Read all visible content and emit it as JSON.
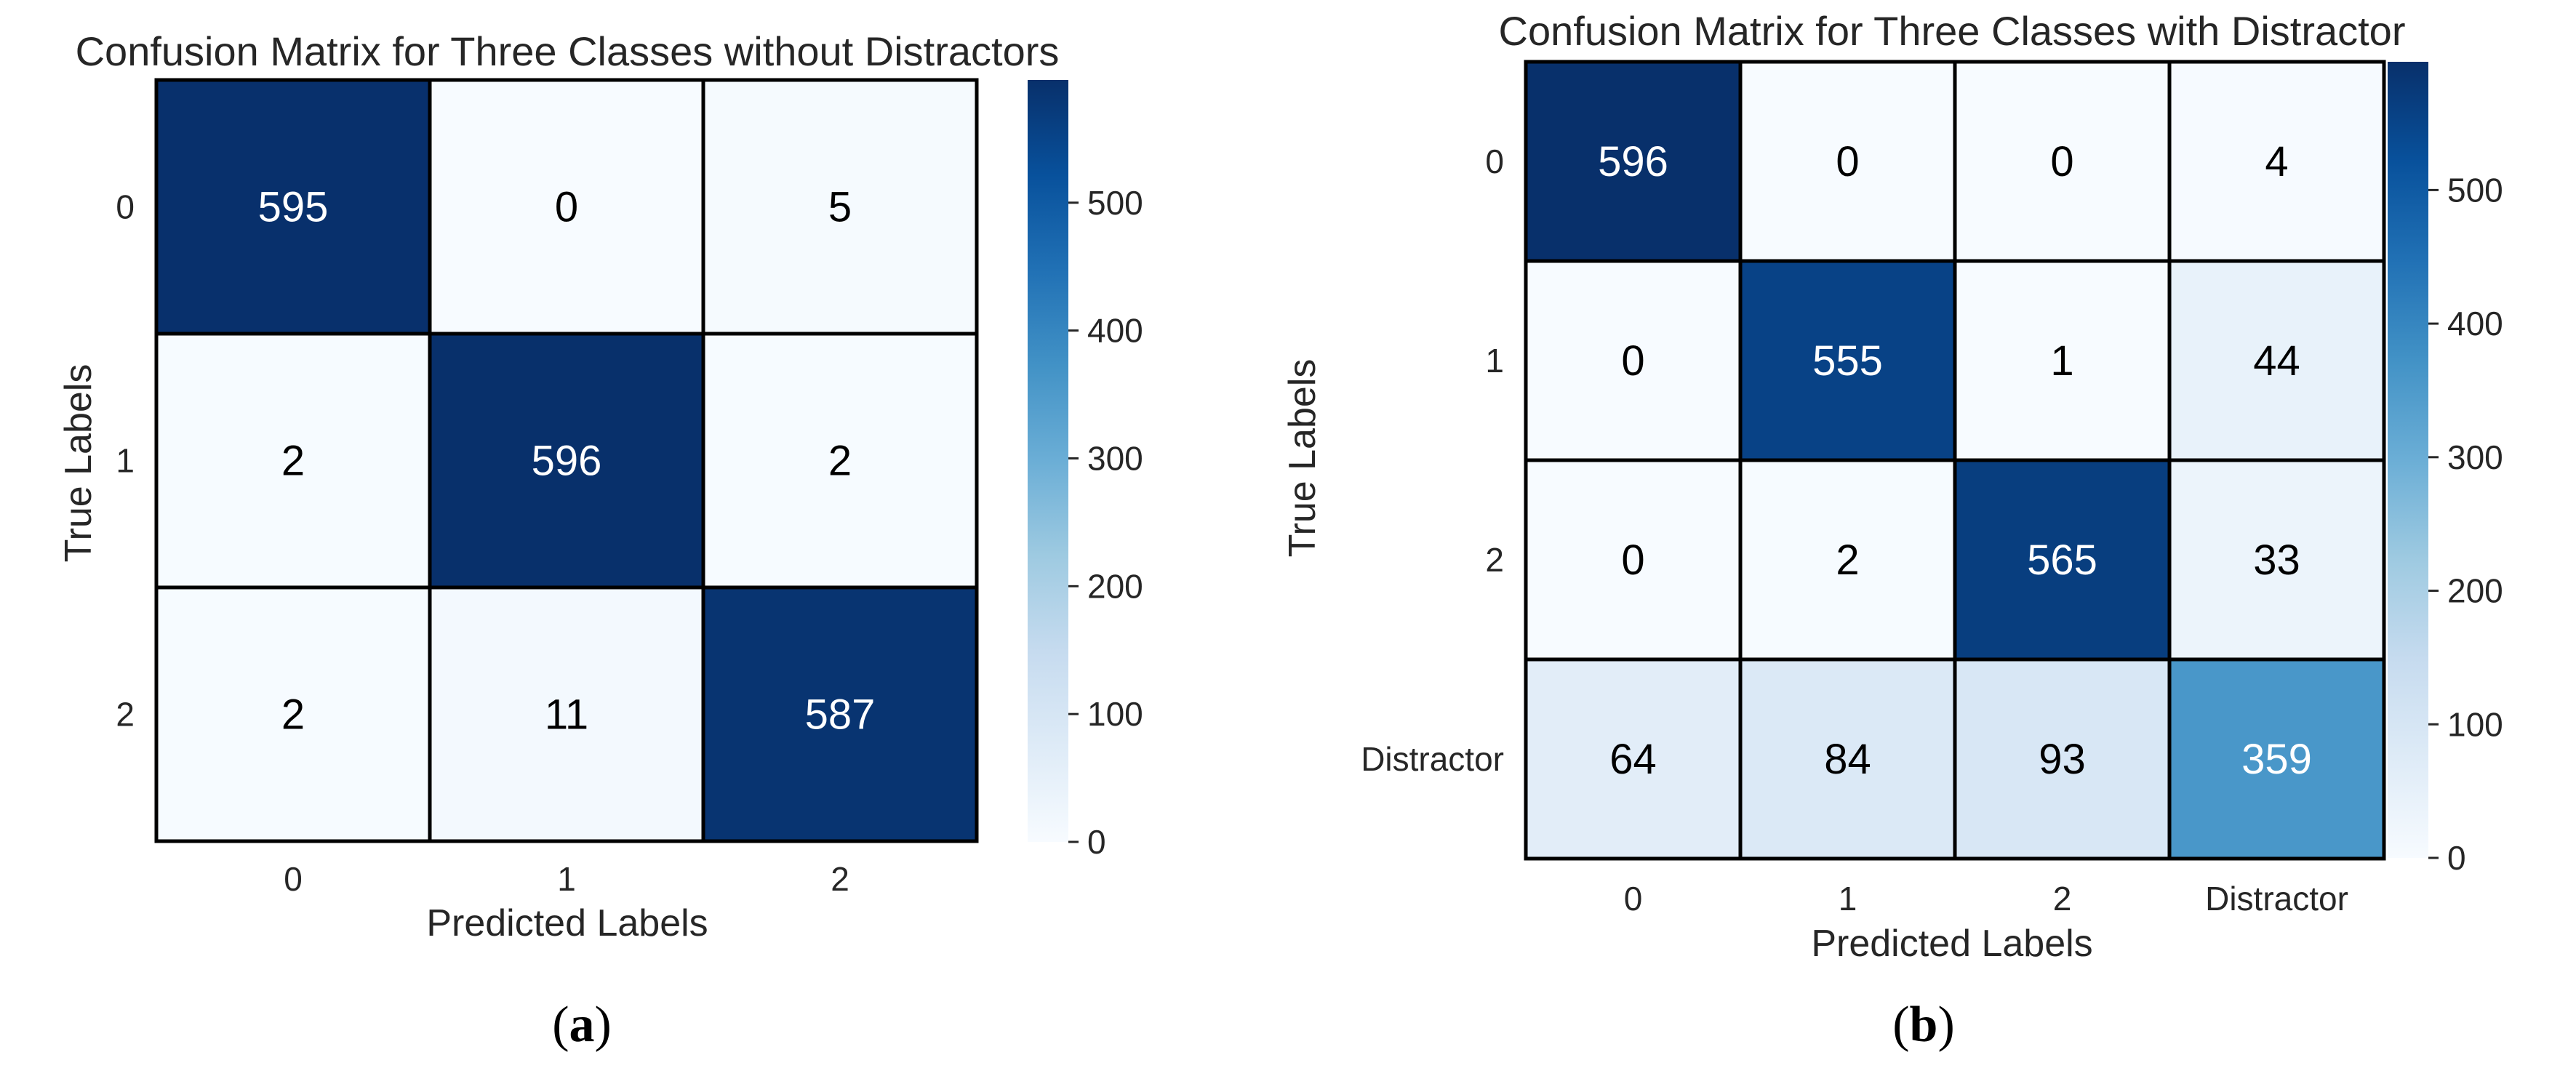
{
  "chart_data": [
    {
      "type": "heatmap",
      "title": "Confusion Matrix for Three Classes without Distractors",
      "xlabel": "Predicted Labels",
      "ylabel": "True Labels",
      "x_categories": [
        "0",
        "1",
        "2"
      ],
      "y_categories": [
        "0",
        "1",
        "2"
      ],
      "values": [
        [
          595,
          0,
          5
        ],
        [
          2,
          596,
          2
        ],
        [
          2,
          11,
          587
        ]
      ],
      "colorbar": {
        "min": 0,
        "max": 596,
        "ticks": [
          "0",
          "100",
          "200",
          "300",
          "400",
          "500"
        ],
        "colormap": "Blues"
      },
      "caption_letter": "a"
    },
    {
      "type": "heatmap",
      "title": "Confusion Matrix for Three Classes with Distractor",
      "xlabel": "Predicted Labels",
      "ylabel": "True Labels",
      "x_categories": [
        "0",
        "1",
        "2",
        "Distractor"
      ],
      "y_categories": [
        "0",
        "1",
        "2",
        "Distractor"
      ],
      "values": [
        [
          596,
          0,
          0,
          4
        ],
        [
          0,
          555,
          1,
          44
        ],
        [
          0,
          2,
          565,
          33
        ],
        [
          64,
          84,
          93,
          359
        ]
      ],
      "colorbar": {
        "min": 0,
        "max": 596,
        "ticks": [
          "0",
          "100",
          "200",
          "300",
          "400",
          "500"
        ],
        "colormap": "Blues"
      },
      "caption_letter": "b"
    }
  ]
}
